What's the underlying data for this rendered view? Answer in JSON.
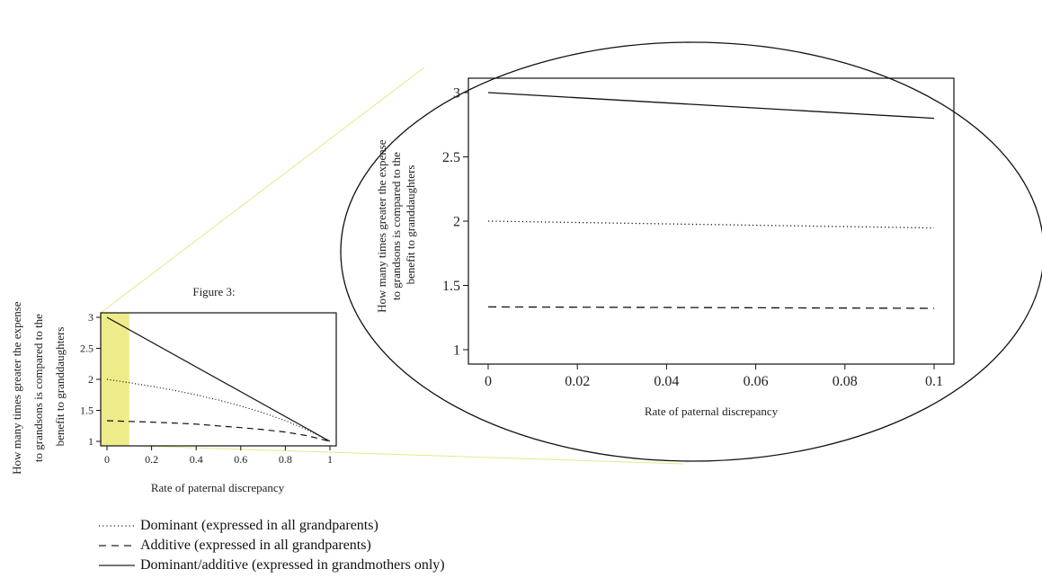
{
  "figure": {
    "title": "Figure 3:",
    "highlight_color": "#eeeb8a",
    "connector_color": "#e9e58a"
  },
  "chart_data": [
    {
      "type": "line",
      "title": "Figure 3:",
      "xlabel": "Rate of paternal discrepancy",
      "ylabel": "How many times greater the expense to grandsons is compared to the benefit to granddaughters",
      "xlim": [
        0,
        1
      ],
      "ylim": [
        1,
        3
      ],
      "xticks": [
        "0",
        "0.2",
        "0.4",
        "0.6",
        "0.8",
        "1"
      ],
      "yticks": [
        "1",
        "1.5",
        "2",
        "2.5",
        "3"
      ],
      "highlight_range": [
        0,
        0.1
      ],
      "grid": false,
      "series": [
        {
          "name": "Dominant (expressed in all grandparents)",
          "style": "dotted",
          "x": [
            0,
            0.1,
            0.2,
            0.3,
            0.4,
            0.5,
            0.6,
            0.7,
            0.8,
            0.9,
            1
          ],
          "y": [
            2,
            1.947,
            1.889,
            1.824,
            1.75,
            1.667,
            1.571,
            1.462,
            1.333,
            1.182,
            1
          ]
        },
        {
          "name": "Additive (expressed in all grandparents)",
          "style": "dashed",
          "x": [
            0,
            0.1,
            0.2,
            0.3,
            0.4,
            0.5,
            0.6,
            0.7,
            0.8,
            0.9,
            1
          ],
          "y": [
            1.333,
            1.322,
            1.31,
            1.296,
            1.278,
            1.25,
            1.222,
            1.19,
            1.15,
            1.09,
            1
          ]
        },
        {
          "name": "Dominant/additive (expressed in grandmothers only)",
          "style": "solid",
          "x": [
            0,
            1
          ],
          "y": [
            3,
            1
          ]
        }
      ]
    },
    {
      "type": "line",
      "xlabel": "Rate of paternal discrepancy",
      "ylabel": "How many times greater the expense to grandsons is compared to the benefit to granddaughters",
      "xlim": [
        0,
        0.1
      ],
      "ylim": [
        1,
        3
      ],
      "xticks": [
        "0",
        "0.02",
        "0.04",
        "0.06",
        "0.08",
        "0.1"
      ],
      "yticks": [
        "1",
        "1.5",
        "2",
        "2.5",
        "3"
      ],
      "grid": false,
      "series": [
        {
          "name": "Dominant (expressed in all grandparents)",
          "style": "dotted",
          "x": [
            0,
            0.1
          ],
          "y": [
            2,
            1.947
          ]
        },
        {
          "name": "Additive (expressed in all grandparents)",
          "style": "dashed",
          "x": [
            0,
            0.1
          ],
          "y": [
            1.333,
            1.322
          ]
        },
        {
          "name": "Dominant/additive (expressed in grandmothers only)",
          "style": "solid",
          "x": [
            0,
            0.1
          ],
          "y": [
            3,
            2.8
          ]
        }
      ]
    }
  ],
  "ylabel_lines": [
    "How many times greater the expense",
    "to grandsons is compared to the",
    "benefit to granddaughters"
  ],
  "legend": [
    {
      "label": "Dominant (expressed in all grandparents)",
      "style": "dotted"
    },
    {
      "label": "Additive (expressed in all grandparents)",
      "style": "dashed"
    },
    {
      "label": "Dominant/additive (expressed in grandmothers only)",
      "style": "solid"
    }
  ]
}
